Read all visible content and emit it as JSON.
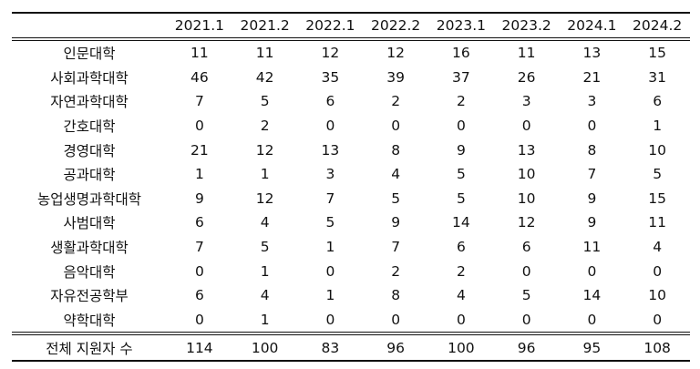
{
  "table": {
    "corner": "",
    "columns": [
      "2021.1",
      "2021.2",
      "2022.1",
      "2022.2",
      "2023.1",
      "2023.2",
      "2024.1",
      "2024.2"
    ],
    "rows": [
      {
        "label": "인문대학",
        "values": [
          "11",
          "11",
          "12",
          "12",
          "16",
          "11",
          "13",
          "15"
        ]
      },
      {
        "label": "사회과학대학",
        "values": [
          "46",
          "42",
          "35",
          "39",
          "37",
          "26",
          "21",
          "31"
        ]
      },
      {
        "label": "자연과학대학",
        "values": [
          "7",
          "5",
          "6",
          "2",
          "2",
          "3",
          "3",
          "6"
        ]
      },
      {
        "label": "간호대학",
        "values": [
          "0",
          "2",
          "0",
          "0",
          "0",
          "0",
          "0",
          "1"
        ]
      },
      {
        "label": "경영대학",
        "values": [
          "21",
          "12",
          "13",
          "8",
          "9",
          "13",
          "8",
          "10"
        ]
      },
      {
        "label": "공과대학",
        "values": [
          "1",
          "1",
          "3",
          "4",
          "5",
          "10",
          "7",
          "5"
        ]
      },
      {
        "label": "농업생명과학대학",
        "values": [
          "9",
          "12",
          "7",
          "5",
          "5",
          "10",
          "9",
          "15"
        ]
      },
      {
        "label": "사범대학",
        "values": [
          "6",
          "4",
          "5",
          "9",
          "14",
          "12",
          "9",
          "11"
        ]
      },
      {
        "label": "생활과학대학",
        "values": [
          "7",
          "5",
          "1",
          "7",
          "6",
          "6",
          "11",
          "4"
        ]
      },
      {
        "label": "음악대학",
        "values": [
          "0",
          "1",
          "0",
          "2",
          "2",
          "0",
          "0",
          "0"
        ]
      },
      {
        "label": "자유전공학부",
        "values": [
          "6",
          "4",
          "1",
          "8",
          "4",
          "5",
          "14",
          "10"
        ]
      },
      {
        "label": "약학대학",
        "values": [
          "0",
          "1",
          "0",
          "0",
          "0",
          "0",
          "0",
          "0"
        ]
      }
    ],
    "total": {
      "label": "전체 지원자 수",
      "values": [
        "114",
        "100",
        "83",
        "96",
        "100",
        "96",
        "95",
        "108"
      ]
    }
  }
}
